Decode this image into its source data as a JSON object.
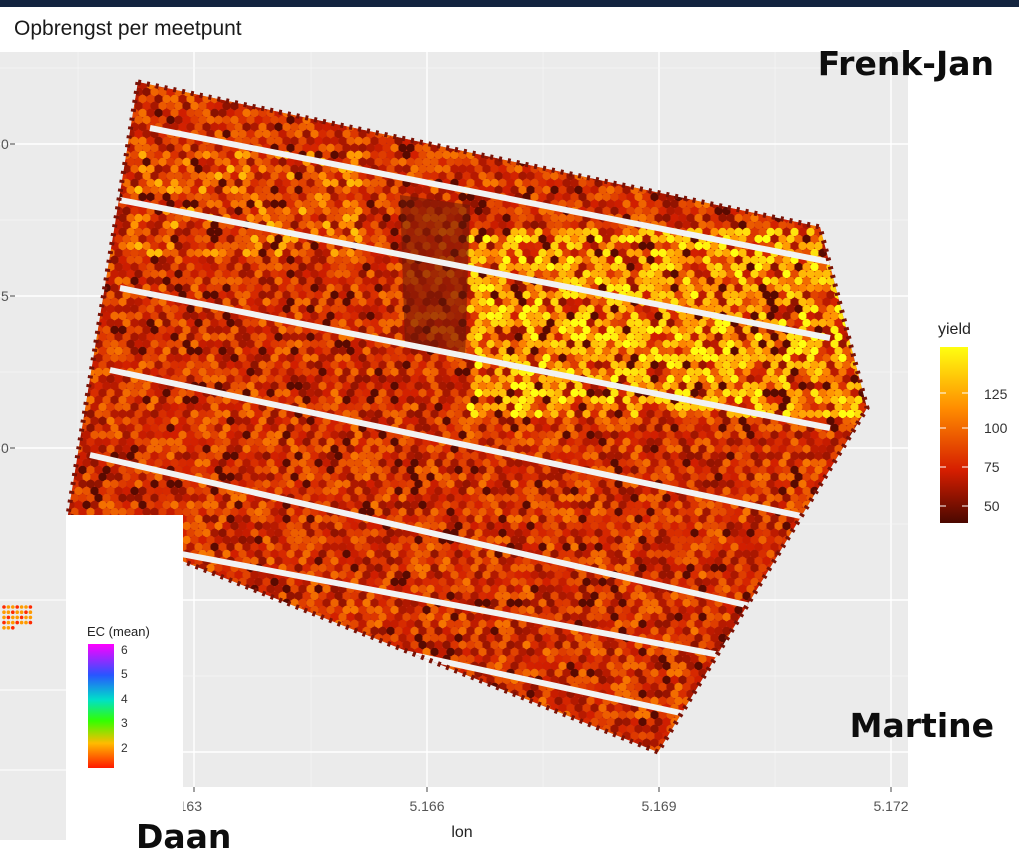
{
  "chart_data": {
    "type": "scatter",
    "title": "Opbrengst per meetpunt",
    "xlabel": "lon",
    "ylabel": "",
    "x_ticks": [
      "163",
      "5.166",
      "5.169",
      "5.172"
    ],
    "y_ticks": [
      "0",
      "5",
      "0",
      ""
    ],
    "legend": {
      "title": "yield",
      "labels": [
        "125",
        "100",
        "75",
        "50"
      ],
      "colors": [
        "#ffff00",
        "#ff9900",
        "#ee2200",
        "#5a0a00"
      ]
    },
    "field_yield": {
      "low": 45,
      "typical": 75,
      "high": 140
    },
    "annotations": [
      "Frenk-Jan",
      "Martine",
      "Daan"
    ],
    "grid": true,
    "legend_position": "right"
  },
  "inset": {
    "legend_title": "EC (mean)",
    "labels": [
      "6",
      "5",
      "4",
      "3",
      "2"
    ],
    "colors": [
      "#ff00ff",
      "#3344ff",
      "#00ddbb",
      "#44ff00",
      "#ff2200"
    ]
  },
  "colors": {
    "panel_background": "#ebebeb",
    "gridline": "#ffffff",
    "header_bar": "#13243f"
  }
}
